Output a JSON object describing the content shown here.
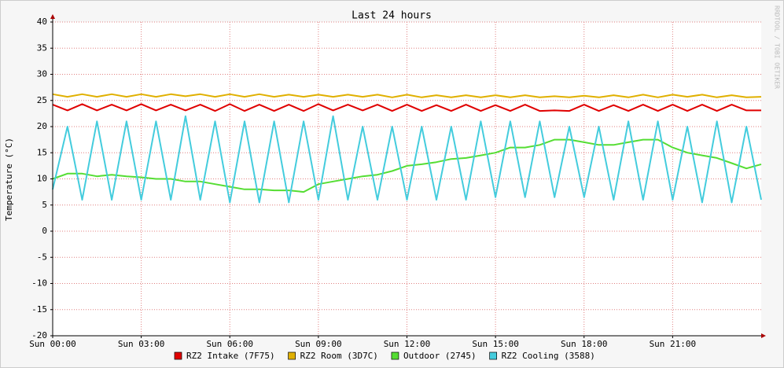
{
  "chart_data": {
    "type": "line",
    "title": "Last 24 hours",
    "y_label": "Temperature (°C)",
    "watermark": "RRDTOOL / TOBI OETIKER",
    "x": [
      0,
      0.5,
      1,
      1.5,
      2,
      2.5,
      3,
      3.5,
      4,
      4.5,
      5,
      5.5,
      6,
      6.5,
      7,
      7.5,
      8,
      8.5,
      9,
      9.5,
      10,
      10.5,
      11,
      11.5,
      12,
      12.5,
      13,
      13.5,
      14,
      14.5,
      15,
      15.5,
      16,
      16.5,
      17,
      17.5,
      18,
      18.5,
      19,
      19.5,
      20,
      20.5,
      21,
      21.5,
      22,
      22.5,
      23,
      23.5,
      24
    ],
    "xlim": [
      0,
      24
    ],
    "xticks": [
      {
        "value": 0,
        "label": "Sun 00:00"
      },
      {
        "value": 3,
        "label": "Sun 03:00"
      },
      {
        "value": 6,
        "label": "Sun 06:00"
      },
      {
        "value": 9,
        "label": "Sun 09:00"
      },
      {
        "value": 12,
        "label": "Sun 12:00"
      },
      {
        "value": 15,
        "label": "Sun 15:00"
      },
      {
        "value": 18,
        "label": "Sun 18:00"
      },
      {
        "value": 21,
        "label": "Sun 21:00"
      }
    ],
    "ylim": [
      -20,
      40
    ],
    "yticks": [
      -20,
      -15,
      -10,
      -5,
      0,
      5,
      10,
      15,
      20,
      25,
      30,
      35,
      40
    ],
    "grid": true,
    "series": [
      {
        "name": "RZ2 Intake (7F75)",
        "color": "#e00000",
        "values": [
          24.2,
          23.1,
          24.3,
          23.1,
          24.2,
          23.1,
          24.3,
          23.1,
          24.2,
          23.1,
          24.2,
          23.0,
          24.3,
          23.0,
          24.2,
          23.0,
          24.2,
          23.0,
          24.3,
          23.1,
          24.2,
          23.1,
          24.2,
          23.0,
          24.2,
          23.0,
          24.1,
          23.0,
          24.2,
          23.0,
          24.1,
          23.0,
          24.2,
          23.0,
          23.1,
          23.0,
          24.2,
          23.0,
          24.1,
          23.0,
          24.2,
          23.0,
          24.2,
          23.0,
          24.2,
          23.0,
          24.2,
          23.1,
          23.1
        ]
      },
      {
        "name": "RZ2 Room (3D7C)",
        "color": "#e0b000",
        "values": [
          26.2,
          25.7,
          26.2,
          25.7,
          26.2,
          25.7,
          26.2,
          25.7,
          26.2,
          25.8,
          26.2,
          25.7,
          26.2,
          25.7,
          26.2,
          25.7,
          26.1,
          25.7,
          26.1,
          25.7,
          26.1,
          25.7,
          26.1,
          25.6,
          26.1,
          25.6,
          26.0,
          25.6,
          26.0,
          25.6,
          26.0,
          25.6,
          26.0,
          25.6,
          25.8,
          25.6,
          25.9,
          25.6,
          26.0,
          25.6,
          26.1,
          25.6,
          26.1,
          25.7,
          26.1,
          25.6,
          26.0,
          25.6,
          25.7
        ]
      },
      {
        "name": "Outdoor (2745)",
        "color": "#55dd33",
        "values": [
          10.0,
          11.0,
          11.0,
          10.5,
          10.8,
          10.5,
          10.3,
          10.0,
          10.0,
          9.5,
          9.5,
          9.0,
          8.5,
          8.0,
          8.0,
          7.8,
          7.8,
          7.5,
          9.0,
          9.5,
          10.0,
          10.5,
          10.8,
          11.5,
          12.5,
          12.8,
          13.2,
          13.8,
          14.0,
          14.5,
          15.0,
          16.0,
          16.0,
          16.5,
          17.5,
          17.5,
          17.0,
          16.5,
          16.5,
          17.0,
          17.5,
          17.5,
          16.0,
          15.0,
          14.5,
          14.0,
          13.0,
          12.0,
          12.8
        ]
      },
      {
        "name": "RZ2 Cooling (3588)",
        "color": "#44ccdd",
        "values": [
          8,
          20,
          6,
          21,
          6,
          21,
          6,
          21,
          6,
          22,
          6,
          21,
          5.5,
          21,
          5.5,
          21,
          5.5,
          21,
          6,
          22,
          6,
          20,
          6,
          20,
          6,
          20,
          6,
          20,
          6,
          21,
          6.5,
          21,
          6.5,
          21,
          6.5,
          20,
          6.5,
          20,
          6,
          21,
          6,
          21,
          6,
          20,
          5.5,
          21,
          5.5,
          20,
          6
        ]
      }
    ]
  }
}
